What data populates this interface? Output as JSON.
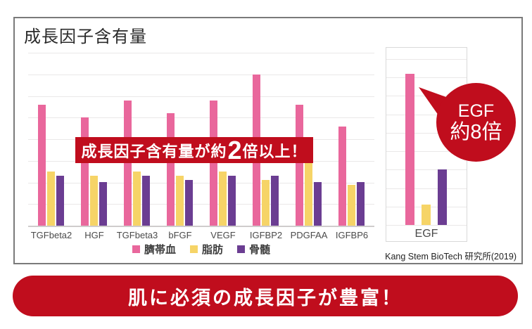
{
  "card": {
    "title": "成長因子含有量",
    "source": "Kang Stem BioTech 研究所(2019)"
  },
  "callouts": {
    "banner": {
      "prefix": "成長因子含有量が約",
      "big": "2",
      "suffix": "倍以上！"
    },
    "bubble": {
      "line1": "EGF",
      "line2": "約8倍"
    }
  },
  "bottom_banner": {
    "text": "肌に必須の成長因子が豊富！"
  },
  "colors": {
    "accent_red": "#c00d1d",
    "cord_blood_pink": "#e9679c",
    "fat_yellow": "#f6d467",
    "bone_marrow_purple": "#6b3d92",
    "gridline": "#eae8e8",
    "axis": "#cfcccc"
  },
  "chart_data": [
    {
      "type": "bar",
      "title": "成長因子含有量",
      "categories": [
        "TGFbeta2",
        "HGF",
        "TGFbeta3",
        "bFGF",
        "VEGF",
        "IGFBP2",
        "PDGFAA",
        "IGFBP6"
      ],
      "series": [
        {
          "name": "臍帯血",
          "color": "#e9679c",
          "values": [
            5.6,
            5.0,
            5.8,
            5.2,
            5.8,
            7.0,
            5.6,
            4.6
          ]
        },
        {
          "name": "脂肪",
          "color": "#f6d467",
          "values": [
            2.5,
            2.3,
            2.5,
            2.3,
            2.5,
            2.1,
            2.9,
            1.9
          ]
        },
        {
          "name": "骨髄",
          "color": "#6b3d92",
          "values": [
            2.3,
            2.0,
            2.3,
            2.1,
            2.3,
            2.3,
            2.0,
            2.0
          ]
        }
      ],
      "ylim": [
        0,
        8
      ],
      "grid": true,
      "legend_position": "bottom",
      "annotation": "成長因子含有量が約2倍以上！"
    },
    {
      "type": "bar",
      "title": "EGF",
      "categories": [
        "EGF"
      ],
      "series": [
        {
          "name": "臍帯血",
          "color": "#e9679c",
          "values": [
            8.2
          ]
        },
        {
          "name": "脂肪",
          "color": "#f6d467",
          "values": [
            1.1
          ]
        },
        {
          "name": "骨髄",
          "color": "#6b3d92",
          "values": [
            3.0
          ]
        }
      ],
      "ylim": [
        0,
        9
      ],
      "grid": true,
      "annotation": "EGF 約8倍"
    }
  ]
}
